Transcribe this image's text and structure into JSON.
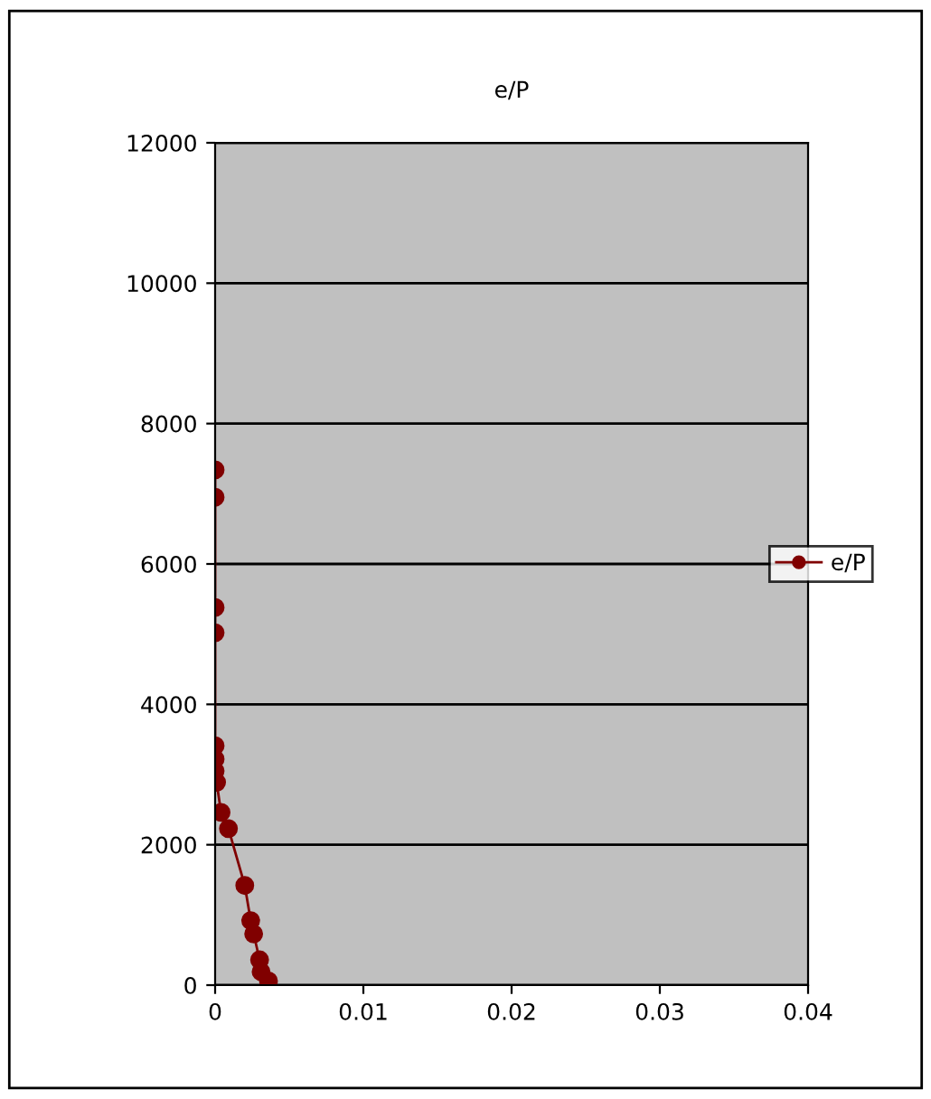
{
  "chart_data": {
    "type": "line",
    "title": "e/P",
    "x": [
      0,
      0,
      0,
      0,
      0,
      0,
      0,
      0.0001,
      0.0004,
      0.0009,
      0.002,
      0.0024,
      0.0026,
      0.003,
      0.0031,
      0.0036
    ],
    "series": [
      {
        "name": "e/P",
        "color": "#800000",
        "values": [
          7340,
          6950,
          5380,
          5020,
          3410,
          3220,
          3050,
          2890,
          2460,
          2230,
          1420,
          920,
          730,
          360,
          190,
          60
        ]
      }
    ],
    "xlim": [
      0,
      0.04
    ],
    "xticks": [
      0,
      0.01,
      0.02,
      0.03,
      0.04
    ],
    "ylim": [
      0,
      12000
    ],
    "yticks": [
      0,
      2000,
      4000,
      6000,
      8000,
      10000,
      12000
    ],
    "grid": "y",
    "legend": "right",
    "marker": "circle",
    "line_style": "solid"
  }
}
